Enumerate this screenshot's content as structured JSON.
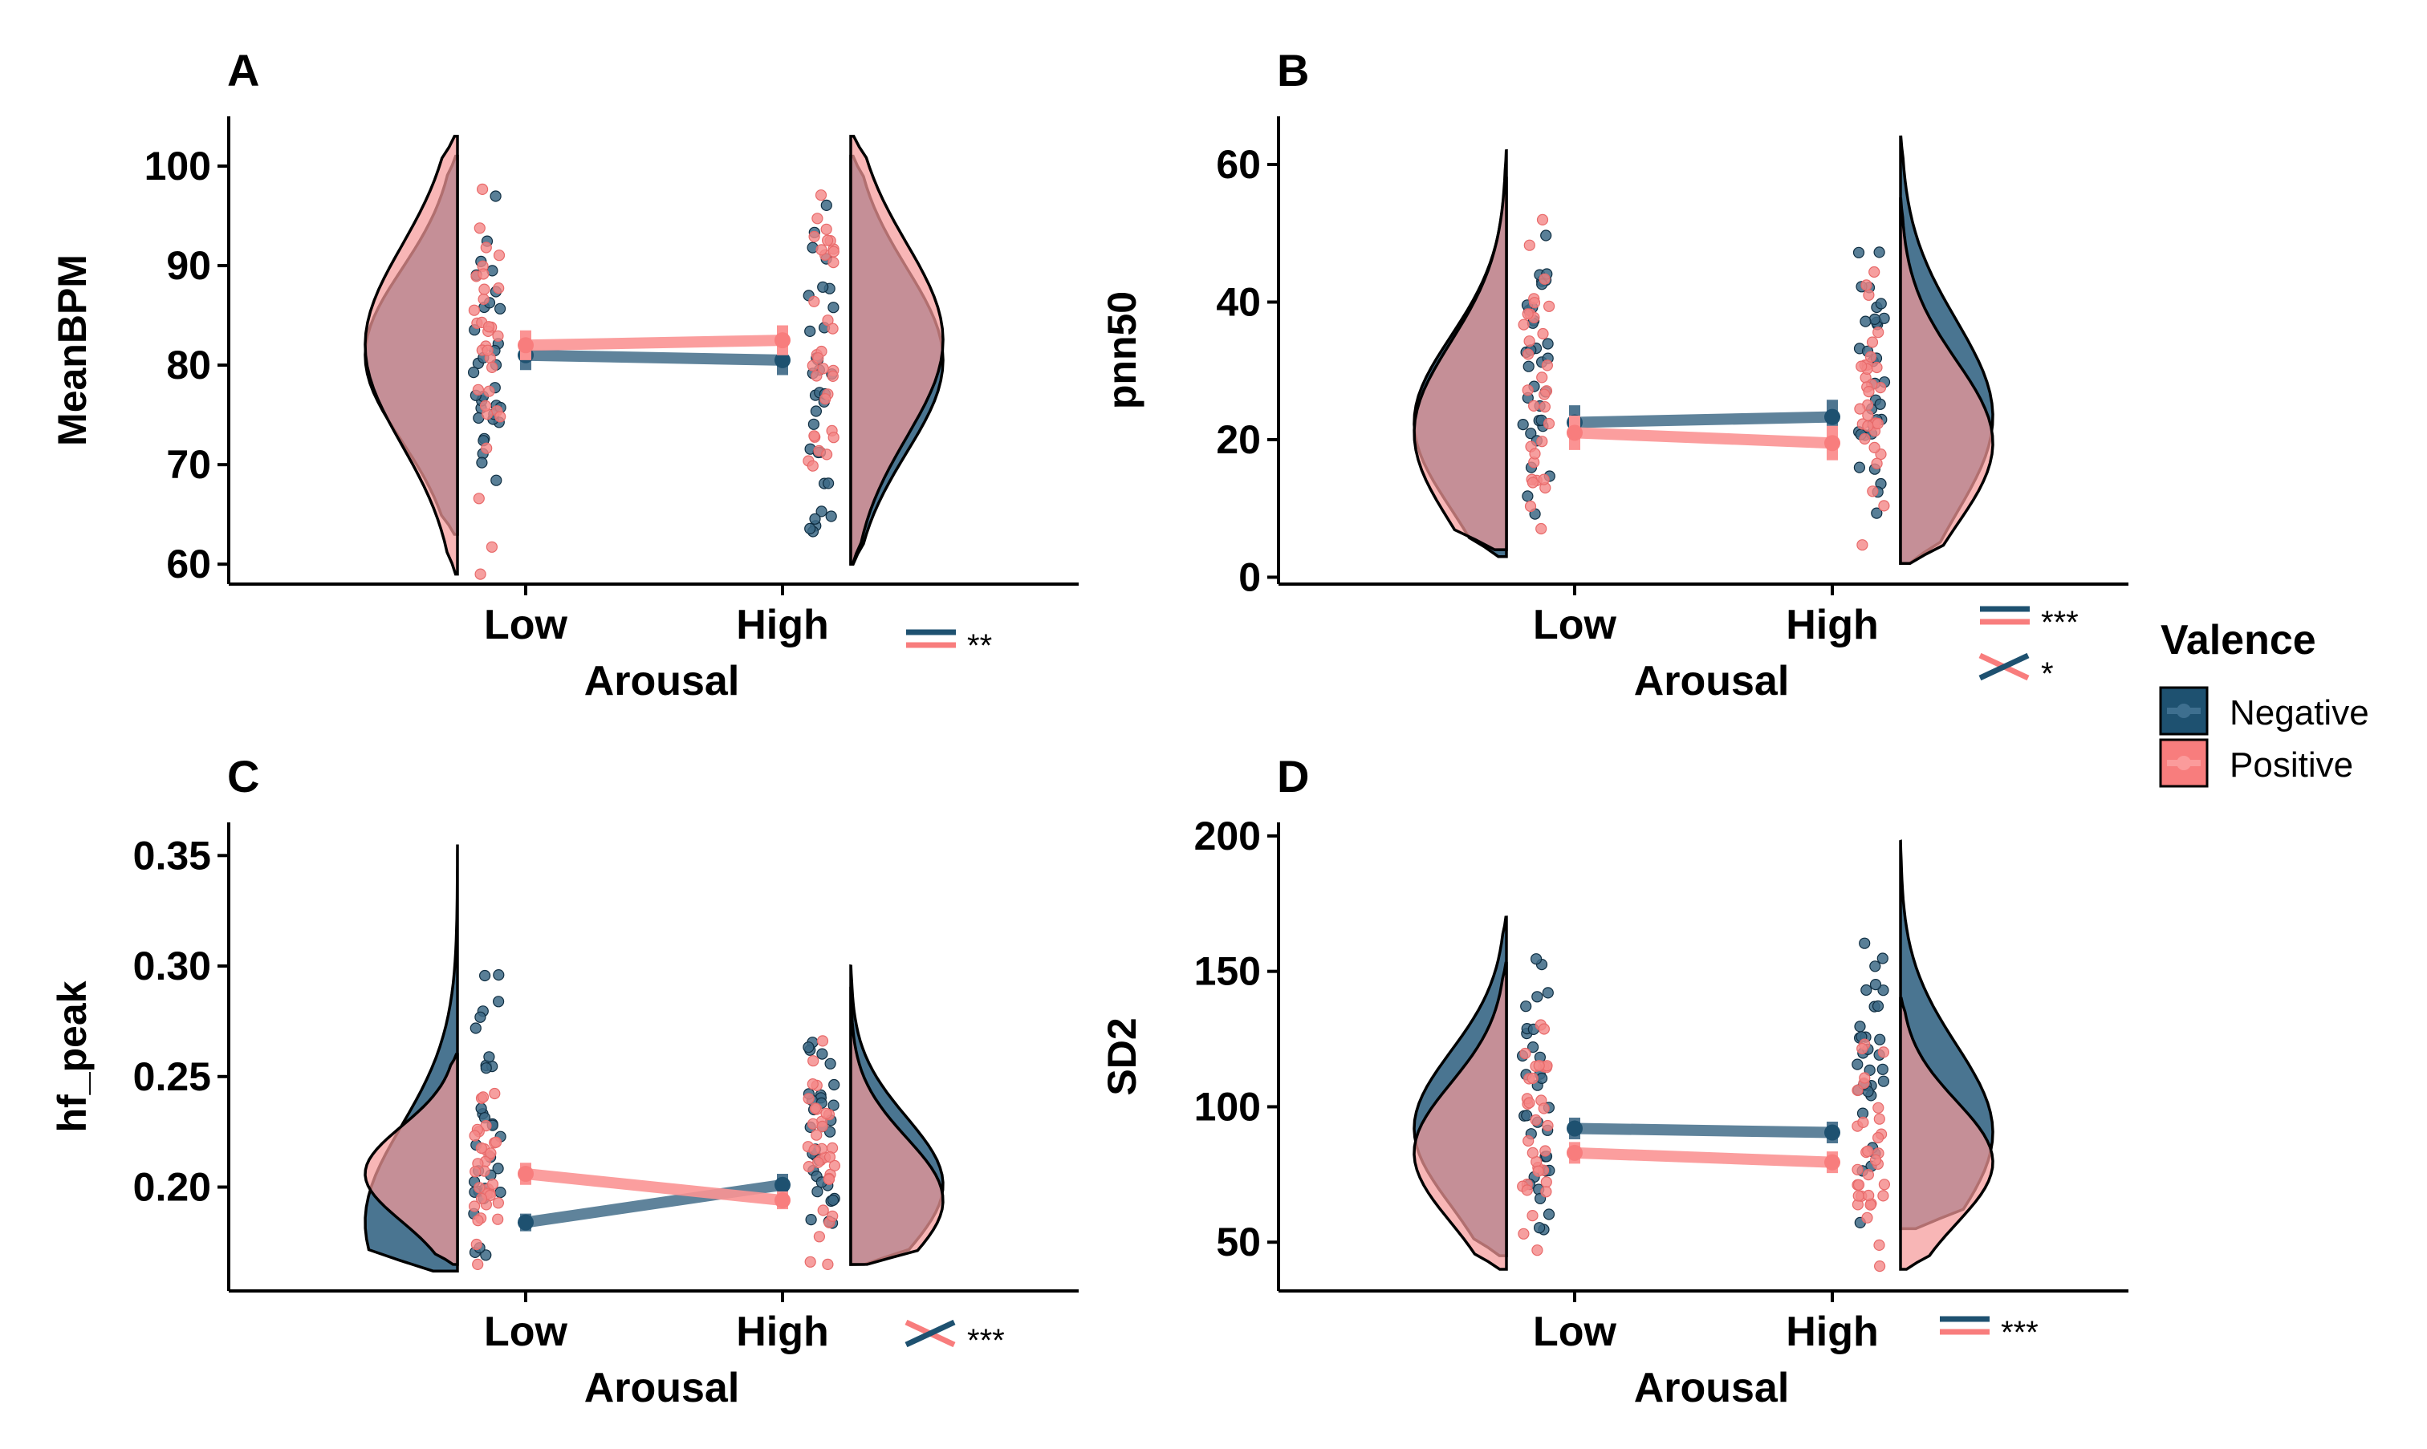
{
  "colors": {
    "negative": "#1e5170",
    "positive": "#f87d7d",
    "axis": "#000000"
  },
  "legend": {
    "title": "Valence",
    "items": [
      {
        "label": "Negative",
        "color": "#1e5170"
      },
      {
        "label": "Positive",
        "color": "#f87d7d"
      }
    ]
  },
  "chart_data": [
    {
      "panel": "A",
      "type": "raincloud",
      "ylabel": "MeanBPM",
      "xlabel": "Arousal",
      "categories": [
        "Low",
        "High"
      ],
      "ylim": [
        58,
        105
      ],
      "yticks": [
        60,
        70,
        80,
        90,
        100
      ],
      "series": [
        {
          "name": "Negative",
          "means": [
            81.0,
            80.5
          ],
          "ci": [
            1.5,
            1.5
          ],
          "violin_range": [
            [
              63,
              101
            ],
            [
              60,
              101
            ]
          ]
        },
        {
          "name": "Positive",
          "means": [
            82.0,
            82.5
          ],
          "ci": [
            1.5,
            1.5
          ],
          "violin_range": [
            [
              59,
              103
            ],
            [
              60,
              103
            ]
          ]
        }
      ],
      "significance": [
        {
          "symbol": "parallel",
          "text": "**"
        }
      ]
    },
    {
      "panel": "B",
      "type": "raincloud",
      "ylabel": "pnn50",
      "xlabel": "Arousal",
      "categories": [
        "Low",
        "High"
      ],
      "ylim": [
        -1,
        67
      ],
      "yticks": [
        0,
        20,
        40,
        60
      ],
      "series": [
        {
          "name": "Negative",
          "means": [
            22.5,
            23.3
          ],
          "ci": [
            2.5,
            2.5
          ],
          "violin_range": [
            [
              3,
              58
            ],
            [
              2,
              64
            ]
          ]
        },
        {
          "name": "Positive",
          "means": [
            21.0,
            19.5
          ],
          "ci": [
            2.5,
            2.5
          ],
          "violin_range": [
            [
              4,
              62
            ],
            [
              2,
              55
            ]
          ]
        }
      ],
      "significance": [
        {
          "symbol": "parallel",
          "text": "***"
        },
        {
          "symbol": "cross",
          "text": "*"
        }
      ]
    },
    {
      "panel": "C",
      "type": "raincloud",
      "ylabel": "hf_peak",
      "xlabel": "Arousal",
      "categories": [
        "Low",
        "High"
      ],
      "ylim": [
        0.153,
        0.365
      ],
      "yticks": [
        "0.20",
        "0.25",
        "0.30",
        "0.35"
      ],
      "series": [
        {
          "name": "Negative",
          "means": [
            0.184,
            0.201
          ],
          "ci": [
            0.004,
            0.005
          ],
          "violin_range": [
            [
              0.162,
              0.355
            ],
            [
              0.165,
              0.3
            ]
          ]
        },
        {
          "name": "Positive",
          "means": [
            0.206,
            0.194
          ],
          "ci": [
            0.005,
            0.004
          ],
          "violin_range": [
            [
              0.165,
              0.26
            ],
            [
              0.165,
              0.29
            ]
          ]
        }
      ],
      "significance": [
        {
          "symbol": "cross",
          "text": "***"
        }
      ]
    },
    {
      "panel": "D",
      "type": "raincloud",
      "ylabel": "SD2",
      "xlabel": "Arousal",
      "categories": [
        "Low",
        "High"
      ],
      "ylim": [
        32,
        205
      ],
      "yticks": [
        50,
        100,
        150,
        200
      ],
      "series": [
        {
          "name": "Negative",
          "means": [
            92.0,
            90.5
          ],
          "ci": [
            4,
            4
          ],
          "violin_range": [
            [
              45,
              170
            ],
            [
              55,
              198
            ]
          ]
        },
        {
          "name": "Positive",
          "means": [
            83.0,
            79.5
          ],
          "ci": [
            4,
            4
          ],
          "violin_range": [
            [
              40,
              153
            ],
            [
              40,
              140
            ]
          ]
        }
      ],
      "significance": [
        {
          "symbol": "parallel",
          "text": "***"
        }
      ]
    }
  ]
}
